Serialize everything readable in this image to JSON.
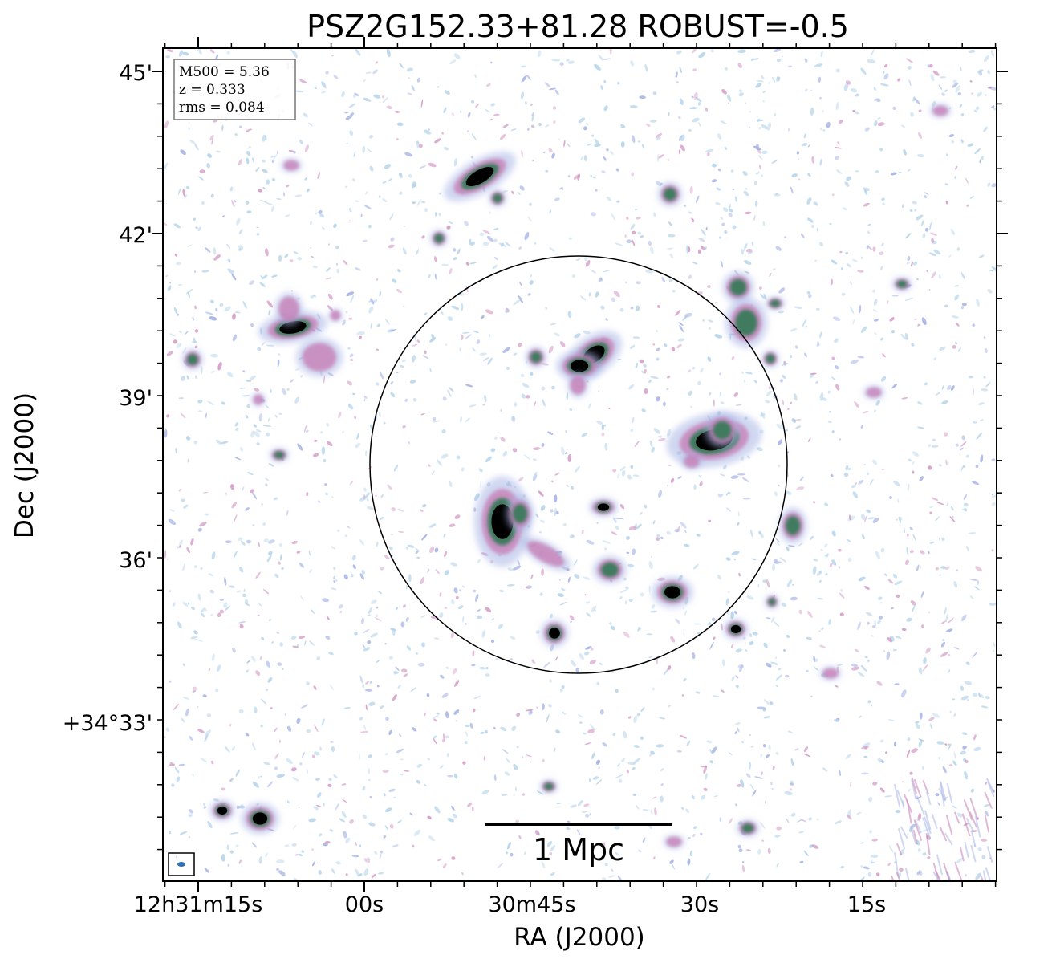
{
  "title": "PSZ2G152.33+81.28 ROBUST=-0.5",
  "axes": {
    "xlabel": "RA (J2000)",
    "ylabel": "Dec (J2000)",
    "x_ticks": [
      "12h31m15s",
      "00s",
      "30m45s",
      "30s",
      "15s"
    ],
    "y_ticks": [
      "45'",
      "42'",
      "39'",
      "36'",
      "+34°33'"
    ]
  },
  "info_box": {
    "lines": [
      "M500 = 5.36",
      "z = 0.333",
      "rms = 0.084"
    ]
  },
  "scale_bar": {
    "label": "1 Mpc"
  },
  "colors": {
    "noise_light": "#b9d6ea",
    "noise_mid": "#a9b6e6",
    "pink": "#c77fb6",
    "green": "#3f7a5e",
    "core": "#000000",
    "beam": "#2f6fb3"
  }
}
